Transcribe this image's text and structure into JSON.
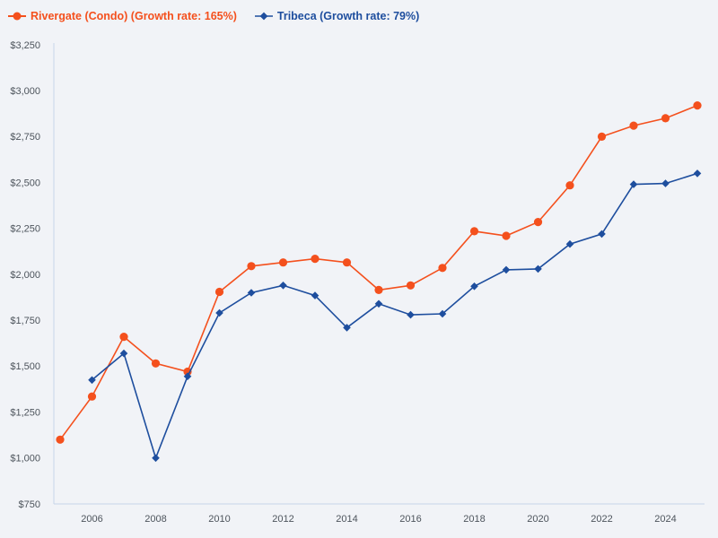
{
  "page": {
    "background": "#f1f3f7",
    "axis_color": "#c6d4e8",
    "tick_label_color": "#4d545c"
  },
  "legend": {
    "items": [
      {
        "label": "Rivergate (Condo) (Growth rate: 165%)",
        "color": "#f4501d",
        "marker": "circle"
      },
      {
        "label": "Tribeca (Growth rate: 79%)",
        "color": "#1e4e9e",
        "marker": "diamond"
      }
    ]
  },
  "chart_data": {
    "type": "line",
    "title": "",
    "xlabel": "",
    "ylabel": "",
    "x": [
      2005,
      2006,
      2007,
      2008,
      2009,
      2010,
      2011,
      2012,
      2013,
      2014,
      2015,
      2016,
      2017,
      2018,
      2019,
      2020,
      2021,
      2022,
      2023,
      2024,
      2025
    ],
    "series": [
      {
        "name": "Rivergate (Condo)",
        "growth_rate": "165%",
        "color": "#f4501d",
        "marker": "circle",
        "values": [
          1100,
          1335,
          1660,
          1515,
          1470,
          1905,
          2045,
          2065,
          2085,
          2065,
          1915,
          1940,
          2035,
          2235,
          2210,
          2285,
          2485,
          2750,
          2810,
          2850,
          2920
        ]
      },
      {
        "name": "Tribeca",
        "growth_rate": "79%",
        "color": "#1e4e9e",
        "marker": "diamond",
        "values": [
          null,
          1425,
          1570,
          1000,
          1445,
          1790,
          1900,
          1940,
          1885,
          1710,
          1840,
          1780,
          1785,
          1935,
          2025,
          2030,
          2165,
          2220,
          2490,
          2495,
          2550
        ]
      }
    ],
    "ylim": [
      750,
      3250
    ],
    "ytick_step": 250,
    "ytick_prefix": "$",
    "xticks": [
      2006,
      2008,
      2010,
      2012,
      2014,
      2016,
      2018,
      2020,
      2022,
      2024
    ],
    "grid": false,
    "legend_position": "top-left"
  }
}
